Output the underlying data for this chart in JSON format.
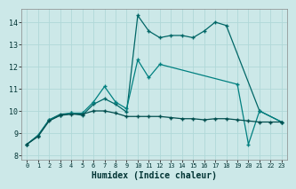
{
  "title": "",
  "xlabel": "Humidex (Indice chaleur)",
  "ylabel": "",
  "bg_color": "#cce8e8",
  "grid_color": "#b0d8d8",
  "xlim": [
    -0.5,
    23.5
  ],
  "ylim": [
    7.8,
    14.6
  ],
  "xticks": [
    0,
    1,
    2,
    3,
    4,
    5,
    6,
    7,
    8,
    9,
    10,
    11,
    12,
    13,
    14,
    15,
    16,
    17,
    18,
    19,
    20,
    21,
    22,
    23
  ],
  "yticks": [
    8,
    9,
    10,
    11,
    12,
    13,
    14
  ],
  "line_color_1": "#006666",
  "line_color_2": "#008080",
  "line_color_3": "#004d4d",
  "s1x": [
    0,
    1,
    2,
    3,
    4,
    5,
    6,
    7,
    8,
    9,
    10,
    11,
    12,
    13,
    14,
    15,
    16,
    17,
    18,
    21,
    23
  ],
  "s1y": [
    8.5,
    8.9,
    9.6,
    9.85,
    9.9,
    9.8,
    10.3,
    10.55,
    10.3,
    9.95,
    14.3,
    13.6,
    13.3,
    13.4,
    13.4,
    13.3,
    13.6,
    14.0,
    13.85,
    10.0,
    9.5
  ],
  "s2x": [
    0,
    1,
    2,
    3,
    4,
    5,
    6,
    7,
    8,
    9,
    10,
    11,
    12,
    19,
    20,
    21,
    23
  ],
  "s2y": [
    8.5,
    8.9,
    9.6,
    9.8,
    9.9,
    9.9,
    10.4,
    11.1,
    10.4,
    10.1,
    12.3,
    11.5,
    12.1,
    11.2,
    8.5,
    10.0,
    9.5
  ],
  "s3x": [
    0,
    1,
    2,
    3,
    4,
    5,
    6,
    7,
    8,
    9,
    10,
    11,
    12,
    13,
    14,
    15,
    16,
    17,
    18,
    19,
    20,
    21,
    22,
    23
  ],
  "s3y": [
    8.5,
    8.85,
    9.55,
    9.8,
    9.85,
    9.85,
    10.0,
    10.0,
    9.9,
    9.75,
    9.75,
    9.75,
    9.75,
    9.7,
    9.65,
    9.65,
    9.6,
    9.65,
    9.65,
    9.6,
    9.55,
    9.5,
    9.5,
    9.5
  ]
}
